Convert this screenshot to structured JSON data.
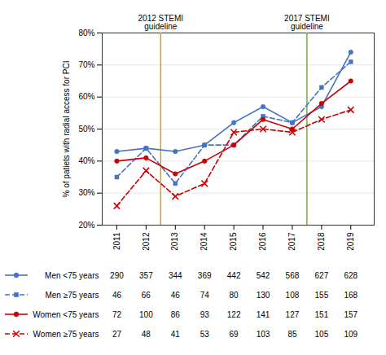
{
  "chart_data": {
    "type": "line",
    "x": [
      2011,
      2012,
      2013,
      2014,
      2015,
      2016,
      2017,
      2018,
      2019
    ],
    "xlim": [
      2010.5,
      2019.8
    ],
    "xticks": [
      2011,
      2012,
      2013,
      2014,
      2015,
      2016,
      2017,
      2018,
      2019
    ],
    "ylim": [
      20,
      80
    ],
    "yticks": [
      {
        "value": 20,
        "label": "20%"
      },
      {
        "value": 30,
        "label": "30%"
      },
      {
        "value": 40,
        "label": "40%"
      },
      {
        "value": 50,
        "label": "50%"
      },
      {
        "value": 60,
        "label": "60%"
      },
      {
        "value": 70,
        "label": "70%"
      },
      {
        "value": 80,
        "label": "80%"
      }
    ],
    "ylabel": "% of patiets with radial access for PCI",
    "grid": true,
    "legend": "bottom",
    "series": [
      {
        "name": "Men <75 years",
        "color": "#4472C4",
        "marker": "circle",
        "line_style": "solid",
        "values": [
          43,
          44,
          43,
          45,
          52,
          57,
          52,
          57,
          74
        ],
        "counts": [
          290,
          357,
          344,
          369,
          442,
          542,
          568,
          627,
          628
        ]
      },
      {
        "name": "Men ≥75 years",
        "color": "#4472C4",
        "marker": "square",
        "line_style": "dashed",
        "values": [
          35,
          44,
          33,
          45,
          45,
          54,
          52,
          63,
          71
        ],
        "counts": [
          46,
          66,
          46,
          74,
          80,
          130,
          108,
          155,
          168
        ]
      },
      {
        "name": "Women <75 years",
        "color": "#CC0000",
        "marker": "circle",
        "line_style": "solid",
        "values": [
          40,
          41,
          36,
          40,
          45,
          53,
          50,
          58,
          65
        ],
        "counts": [
          72,
          100,
          86,
          93,
          122,
          141,
          127,
          151,
          157
        ]
      },
      {
        "name": "Women ≥75 years",
        "color": "#CC0000",
        "marker": "x",
        "line_style": "dashed",
        "values": [
          26,
          37,
          29,
          33,
          49,
          50,
          49,
          53,
          56
        ],
        "counts": [
          27,
          48,
          41,
          53,
          69,
          103,
          85,
          105,
          109
        ]
      }
    ],
    "annotations": [
      {
        "x": 2012.5,
        "text": "2012 STEMI\nguideline",
        "color": "#D4A017"
      },
      {
        "x": 2017.5,
        "text": "2017 STEMI\nguideline",
        "color": "#70AD47"
      }
    ]
  }
}
